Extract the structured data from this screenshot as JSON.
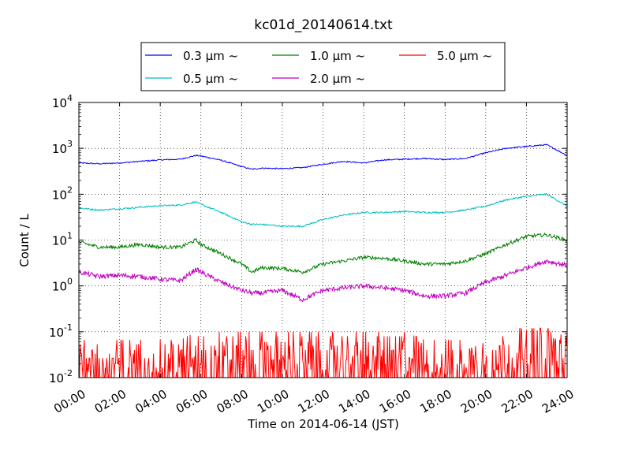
{
  "chart_data": {
    "type": "line",
    "title": "kc01d_20140614.txt",
    "xlabel": "Time on 2014-06-14 (JST)",
    "ylabel": "Count / L",
    "xscale": "time",
    "yscale": "log",
    "xlim": [
      "00:00",
      "24:00"
    ],
    "ylim": [
      0.01,
      10000
    ],
    "grid": true,
    "legend_position": "above plot",
    "x_ticks": [
      "00:00",
      "02:00",
      "04:00",
      "06:00",
      "08:00",
      "10:00",
      "12:00",
      "14:00",
      "16:00",
      "18:00",
      "20:00",
      "22:00",
      "24:00"
    ],
    "y_ticks": [
      {
        "value": 0.01,
        "base": "10",
        "exp": "-2"
      },
      {
        "value": 0.1,
        "base": "10",
        "exp": "-1"
      },
      {
        "value": 1,
        "base": "10",
        "exp": "0"
      },
      {
        "value": 10,
        "base": "10",
        "exp": "1"
      },
      {
        "value": 100,
        "base": "10",
        "exp": "2"
      },
      {
        "value": 1000,
        "base": "10",
        "exp": "3"
      },
      {
        "value": 10000,
        "base": "10",
        "exp": "4"
      }
    ],
    "x": [
      "00:00",
      "01:00",
      "02:00",
      "03:00",
      "04:00",
      "05:00",
      "05:45",
      "06:00",
      "07:00",
      "08:00",
      "08:30",
      "09:00",
      "10:00",
      "11:00",
      "12:00",
      "13:00",
      "14:00",
      "15:00",
      "16:00",
      "17:00",
      "18:00",
      "19:00",
      "20:00",
      "21:00",
      "22:00",
      "23:00",
      "24:00"
    ],
    "series": [
      {
        "name": "0.3 μm ~",
        "color": "#0000ff",
        "noise": 0.03,
        "values": [
          480,
          460,
          480,
          520,
          560,
          580,
          700,
          680,
          550,
          400,
          350,
          370,
          360,
          380,
          450,
          520,
          480,
          560,
          580,
          600,
          570,
          600,
          800,
          1000,
          1100,
          1200,
          700
        ]
      },
      {
        "name": "0.5 μm ~",
        "color": "#00bfbf",
        "noise": 0.04,
        "values": [
          50,
          45,
          48,
          52,
          56,
          58,
          68,
          60,
          40,
          25,
          22,
          22,
          20,
          20,
          28,
          35,
          40,
          40,
          42,
          40,
          40,
          45,
          55,
          75,
          90,
          100,
          55
        ]
      },
      {
        "name": "1.0 μm ~",
        "color": "#008000",
        "noise": 0.09,
        "values": [
          9,
          7,
          7,
          8,
          7,
          7,
          10,
          8,
          5,
          3,
          2,
          2.5,
          2.4,
          2,
          3,
          3.5,
          4.2,
          4,
          3.5,
          3,
          3,
          3.5,
          5,
          8,
          12,
          13,
          10
        ]
      },
      {
        "name": "2.0 μm ~",
        "color": "#bf00bf",
        "noise": 0.12,
        "values": [
          2,
          1.6,
          1.7,
          1.6,
          1.4,
          1.3,
          2.3,
          2,
          1.2,
          0.8,
          0.7,
          0.7,
          0.8,
          0.5,
          0.8,
          0.9,
          1,
          0.9,
          0.8,
          0.6,
          0.6,
          0.7,
          1.2,
          1.7,
          2.5,
          3.5,
          2.8
        ]
      },
      {
        "name": "5.0 μm ~",
        "color": "#ff0000",
        "noise": 0,
        "values": [
          0.02,
          0.02,
          0.02,
          0.02,
          0.02,
          0.02,
          0.03,
          0.03,
          0.03,
          0.03,
          0.03,
          0.03,
          0.03,
          0.03,
          0.03,
          0.03,
          0.03,
          0.03,
          0.03,
          0.02,
          0.02,
          0.02,
          0.03,
          0.03,
          0.04,
          0.04,
          0.03
        ]
      }
    ]
  }
}
